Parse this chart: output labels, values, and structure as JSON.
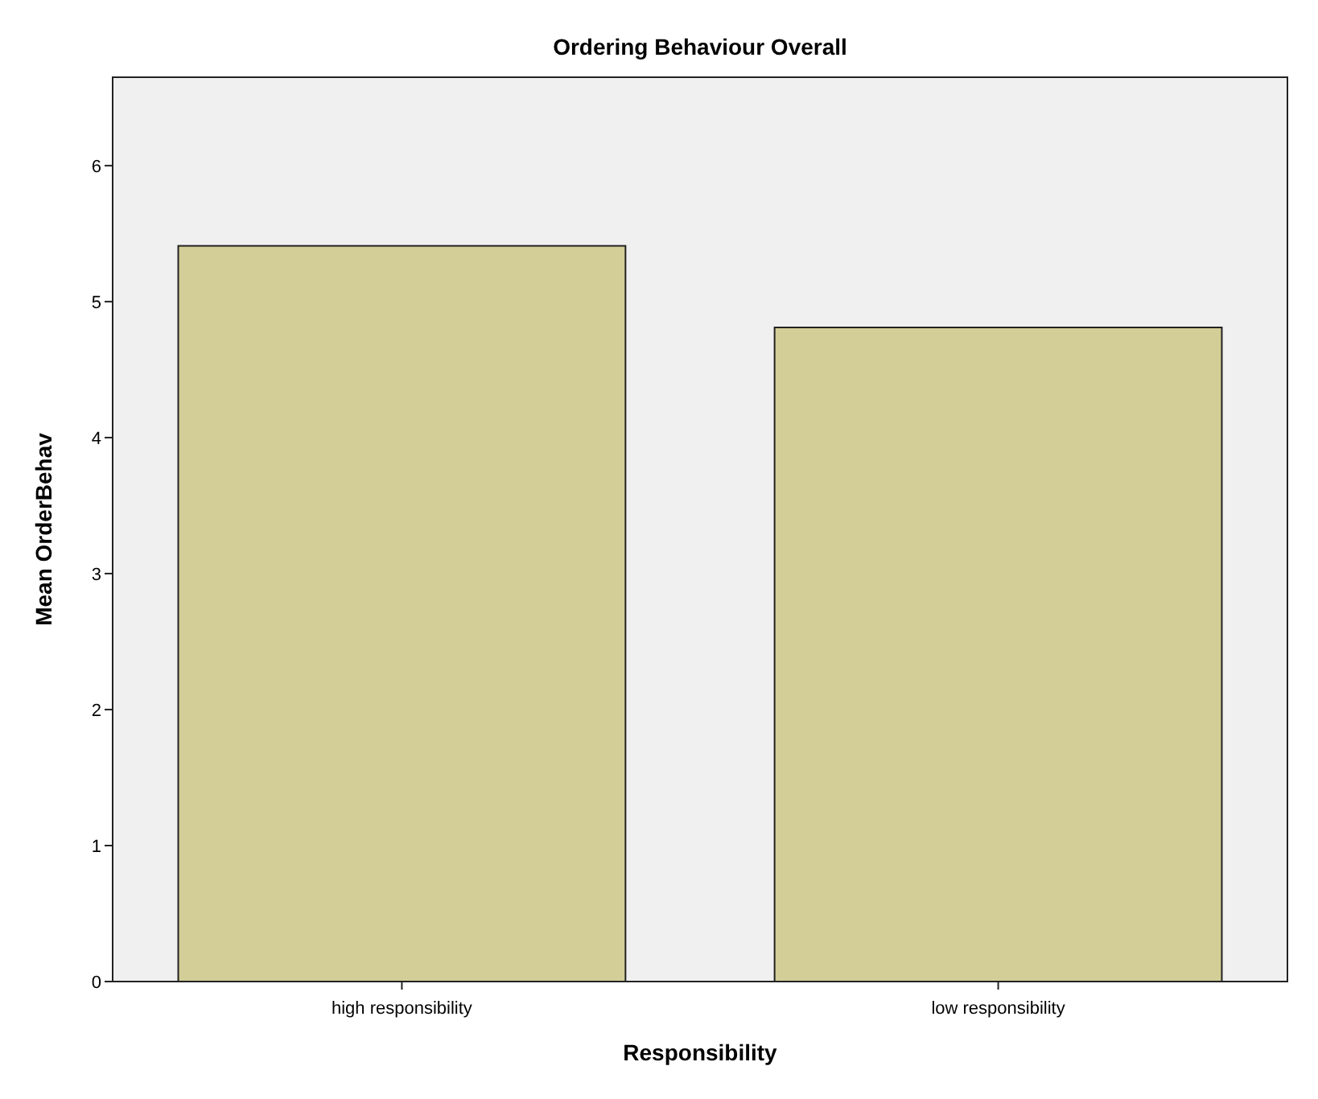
{
  "chart_data": {
    "type": "bar",
    "title": "Ordering Behaviour Overall",
    "xlabel": "Responsibility",
    "ylabel": "Mean OrderBehav",
    "categories": [
      "high responsibility",
      "low responsibility"
    ],
    "values": [
      5.41,
      4.81
    ],
    "color": "#d3ce97",
    "ylim": [
      0,
      6.65
    ],
    "yticks": [
      0,
      1,
      2,
      3,
      4,
      5,
      6
    ],
    "grid": false
  }
}
